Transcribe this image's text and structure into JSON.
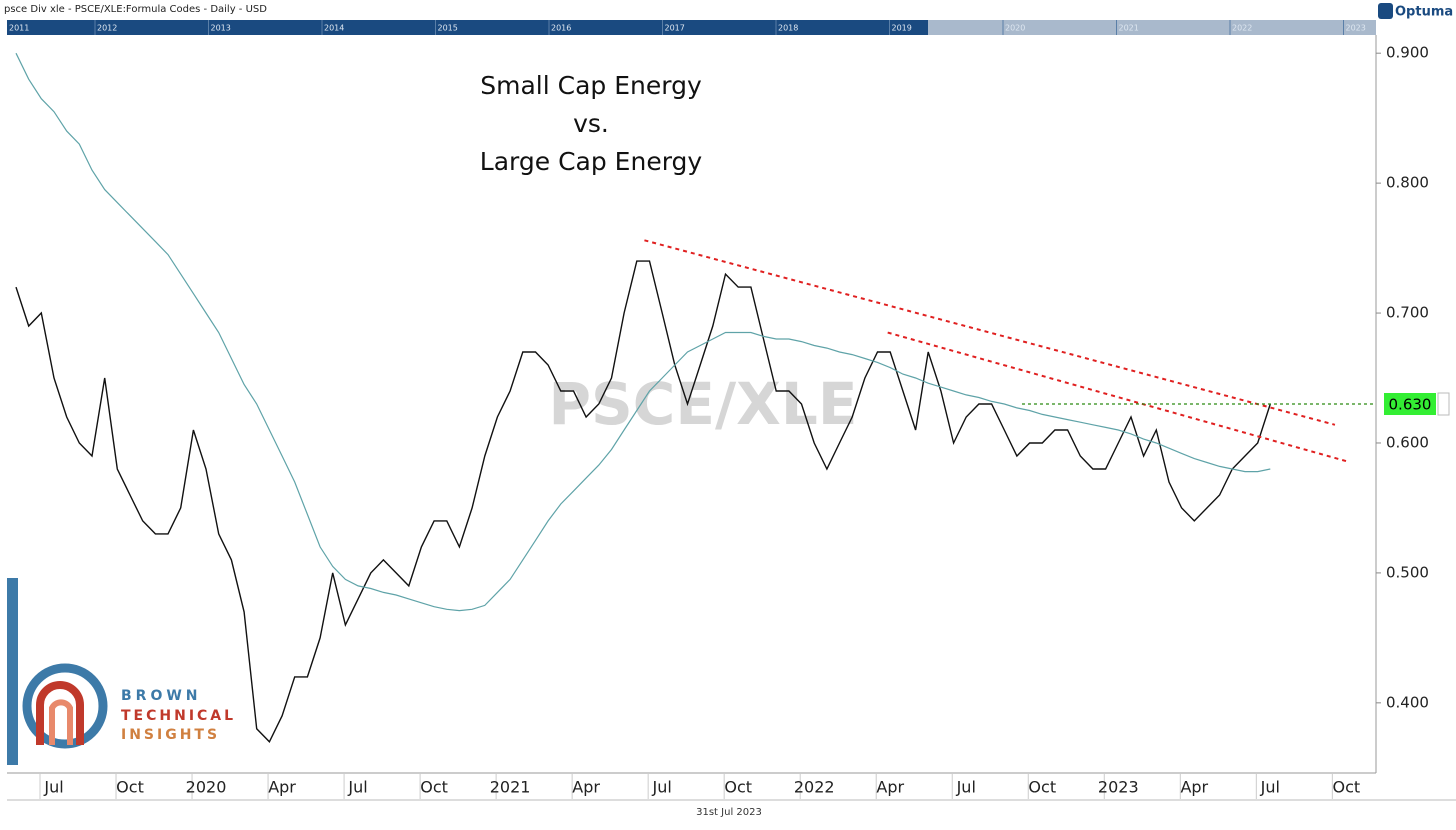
{
  "header": {
    "title": "psce Div xle -  PSCE/XLE:Formula Codes - Daily - USD",
    "brand": "Optuma",
    "date": "31st Jul 2023"
  },
  "navigator_years": [
    "2011",
    "2012",
    "2013",
    "2014",
    "2015",
    "2016",
    "2017",
    "2018",
    "2019",
    "2020",
    "2021",
    "2022",
    "2023"
  ],
  "logo": {
    "lines": [
      "BROWN",
      "TECHNICAL",
      "INSIGHTS"
    ]
  },
  "chart_data": {
    "type": "line",
    "title": [
      "Small Cap Energy",
      "vs.",
      "Large Cap Energy"
    ],
    "watermark": "PSCE/XLE",
    "categories": [
      null,
      null,
      null,
      "Jul",
      null,
      null,
      null,
      null,
      null,
      "Oct",
      null,
      null,
      null,
      null,
      null,
      "2020",
      null,
      null,
      null,
      null,
      null,
      "Apr",
      null,
      null,
      null,
      null,
      null,
      "Jul",
      null,
      null,
      null,
      null,
      null,
      "Oct",
      null,
      null,
      null,
      null,
      null,
      "2021",
      null,
      null,
      null,
      null,
      null,
      "Apr",
      null,
      null,
      null,
      null,
      null,
      "Jul",
      null,
      null,
      null,
      null,
      null,
      "Oct",
      null,
      null,
      null,
      null,
      null,
      "2022",
      null,
      null,
      null,
      null,
      null,
      "Apr",
      null,
      null,
      null,
      null,
      null,
      "Jul",
      null,
      null,
      null,
      null,
      null,
      "Oct",
      null,
      null,
      null,
      null,
      null,
      "2023",
      null,
      null,
      null,
      null,
      null,
      "Apr",
      null,
      null,
      null,
      null,
      null,
      "Jul",
      null,
      null,
      null,
      null,
      null,
      "Oct",
      null,
      null
    ],
    "series": [
      {
        "color": "#111111",
        "values": [
          0.72,
          0.69,
          0.7,
          0.65,
          0.62,
          0.6,
          0.59,
          0.65,
          0.58,
          0.56,
          0.54,
          0.53,
          0.53,
          0.55,
          0.61,
          0.58,
          0.53,
          0.51,
          0.47,
          0.38,
          0.37,
          0.39,
          0.42,
          0.42,
          0.45,
          0.5,
          0.46,
          0.48,
          0.5,
          0.51,
          0.5,
          0.49,
          0.52,
          0.54,
          0.54,
          0.52,
          0.55,
          0.59,
          0.62,
          0.64,
          0.67,
          0.67,
          0.66,
          0.64,
          0.64,
          0.62,
          0.63,
          0.65,
          0.7,
          0.74,
          0.74,
          0.7,
          0.66,
          0.63,
          0.66,
          0.69,
          0.73,
          0.72,
          0.72,
          0.68,
          0.64,
          0.64,
          0.63,
          0.6,
          0.58,
          0.6,
          0.62,
          0.65,
          0.67,
          0.67,
          0.64,
          0.61,
          0.67,
          0.64,
          0.6,
          0.62,
          0.63,
          0.63,
          0.61,
          0.59,
          0.6,
          0.6,
          0.61,
          0.61,
          0.59,
          0.58,
          0.58,
          0.6,
          0.62,
          0.59,
          0.61,
          0.57,
          0.55,
          0.54,
          0.55,
          0.56,
          0.58,
          0.59,
          0.6,
          0.63,
          null,
          null,
          null,
          null,
          null,
          null,
          null,
          null
        ]
      },
      {
        "color": "#5fa3a8",
        "values": [
          0.9,
          0.88,
          0.865,
          0.855,
          0.84,
          0.83,
          0.81,
          0.795,
          0.785,
          0.775,
          0.765,
          0.755,
          0.745,
          0.73,
          0.715,
          0.7,
          0.685,
          0.665,
          0.645,
          0.63,
          0.61,
          0.59,
          0.57,
          0.545,
          0.52,
          0.505,
          0.495,
          0.49,
          0.488,
          0.485,
          0.483,
          0.48,
          0.477,
          0.474,
          0.472,
          0.471,
          0.472,
          0.475,
          0.485,
          0.495,
          0.51,
          0.525,
          0.54,
          0.553,
          0.563,
          0.573,
          0.583,
          0.595,
          0.61,
          0.625,
          0.64,
          0.65,
          0.66,
          0.67,
          0.675,
          0.68,
          0.685,
          0.685,
          0.685,
          0.682,
          0.68,
          0.68,
          0.678,
          0.675,
          0.673,
          0.67,
          0.668,
          0.665,
          0.662,
          0.658,
          0.653,
          0.65,
          0.646,
          0.643,
          0.64,
          0.637,
          0.635,
          0.632,
          0.63,
          0.627,
          0.625,
          0.622,
          0.62,
          0.618,
          0.616,
          0.614,
          0.612,
          0.61,
          0.607,
          0.603,
          0.6,
          0.596,
          0.592,
          0.588,
          0.585,
          0.582,
          0.58,
          0.578,
          0.578,
          0.58,
          null,
          null,
          null,
          null,
          null,
          null,
          null,
          null
        ]
      }
    ],
    "trendlines": [
      {
        "color": "#e02020",
        "start": [
          49.6,
          0.756
        ],
        "end": [
          104.1,
          0.614
        ]
      },
      {
        "color": "#e02020",
        "start": [
          68.8,
          0.685
        ],
        "end": [
          105,
          0.586
        ]
      }
    ],
    "level": {
      "color": "#2a8a10",
      "start": 79.4,
      "value": 0.63,
      "label": "0.630",
      "label_color": "#33ee33"
    },
    "ylim": [
      0.346,
      0.914
    ],
    "yticks": [
      {
        "value": 0.4,
        "label": "0.400"
      },
      {
        "value": 0.5,
        "label": "0.500"
      },
      {
        "value": 0.6,
        "label": "0.600"
      },
      {
        "value": 0.7,
        "label": "0.700"
      },
      {
        "value": 0.8,
        "label": "0.800"
      },
      {
        "value": 0.9,
        "label": "0.900"
      }
    ]
  }
}
